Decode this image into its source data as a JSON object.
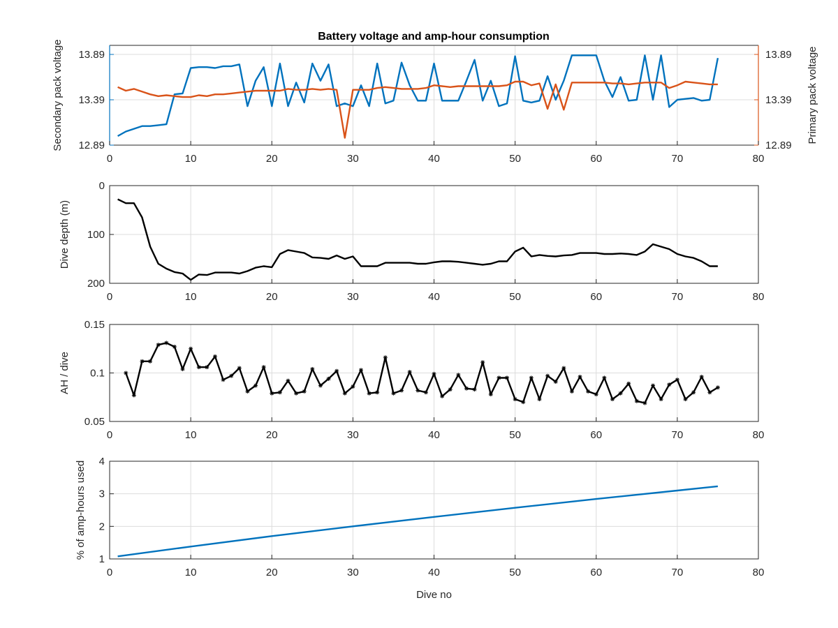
{
  "chart_data": [
    {
      "type": "line",
      "title": "Battery voltage and amp-hour consumption",
      "xlabel": "",
      "xlim": [
        0,
        80
      ],
      "xticks": [
        0,
        10,
        20,
        30,
        40,
        50,
        60,
        70,
        80
      ],
      "grid": true,
      "y_left": {
        "label": "Secondary pack voltage",
        "lim": [
          12.89,
          13.99
        ],
        "ticks": [
          "12.89",
          "13.39",
          "13.89"
        ],
        "color": "#0072BD"
      },
      "y_right": {
        "label": "Primary pack voltage",
        "lim": [
          12.89,
          13.99
        ],
        "ticks": [
          "12.89",
          "13.39",
          "13.89"
        ],
        "color": "#D95319"
      },
      "series": [
        {
          "axis": "left",
          "color": "#0072BD",
          "x": [
            1,
            2,
            3,
            4,
            5,
            6,
            7,
            8,
            9,
            10,
            11,
            12,
            13,
            14,
            15,
            16,
            17,
            18,
            19,
            20,
            21,
            22,
            23,
            24,
            25,
            26,
            27,
            28,
            29,
            30,
            31,
            32,
            33,
            34,
            35,
            36,
            37,
            38,
            39,
            40,
            41,
            42,
            43,
            44,
            45,
            46,
            47,
            48,
            49,
            50,
            51,
            52,
            53,
            54,
            55,
            56,
            57,
            58,
            59,
            60,
            61,
            62,
            63,
            64,
            65,
            66,
            67,
            68,
            69,
            70,
            71,
            72,
            73,
            74,
            75
          ],
          "y": [
            12.99,
            13.04,
            13.07,
            13.1,
            13.1,
            13.11,
            13.12,
            13.45,
            13.46,
            13.74,
            13.75,
            13.75,
            13.74,
            13.76,
            13.76,
            13.78,
            13.32,
            13.6,
            13.75,
            13.32,
            13.79,
            13.32,
            13.58,
            13.36,
            13.79,
            13.6,
            13.78,
            13.32,
            13.35,
            13.32,
            13.55,
            13.32,
            13.79,
            13.35,
            13.38,
            13.8,
            13.55,
            13.38,
            13.38,
            13.79,
            13.38,
            13.38,
            13.38,
            13.6,
            13.83,
            13.38,
            13.6,
            13.32,
            13.35,
            13.87,
            13.38,
            13.36,
            13.38,
            13.65,
            13.39,
            13.6,
            13.88,
            13.88,
            13.88,
            13.88,
            13.6,
            13.42,
            13.64,
            13.38,
            13.39,
            13.88,
            13.39,
            13.88,
            13.31,
            13.39,
            13.4,
            13.41,
            13.38,
            13.39,
            13.85
          ]
        },
        {
          "axis": "right",
          "color": "#D95319",
          "x": [
            1,
            2,
            3,
            4,
            5,
            6,
            7,
            8,
            9,
            10,
            11,
            12,
            13,
            14,
            15,
            16,
            17,
            18,
            19,
            20,
            21,
            22,
            23,
            24,
            25,
            26,
            27,
            28,
            29,
            30,
            31,
            32,
            33,
            34,
            35,
            36,
            37,
            38,
            39,
            40,
            41,
            42,
            43,
            44,
            45,
            46,
            47,
            48,
            49,
            50,
            51,
            52,
            53,
            54,
            55,
            56,
            57,
            58,
            59,
            60,
            61,
            62,
            63,
            64,
            65,
            66,
            67,
            68,
            69,
            70,
            71,
            72,
            73,
            74,
            75
          ],
          "y": [
            13.53,
            13.49,
            13.51,
            13.48,
            13.45,
            13.43,
            13.44,
            13.43,
            13.42,
            13.42,
            13.44,
            13.43,
            13.45,
            13.45,
            13.46,
            13.47,
            13.48,
            13.49,
            13.49,
            13.49,
            13.49,
            13.51,
            13.5,
            13.5,
            13.51,
            13.5,
            13.51,
            13.5,
            12.97,
            13.5,
            13.5,
            13.5,
            13.52,
            13.53,
            13.52,
            13.51,
            13.51,
            13.51,
            13.52,
            13.55,
            13.54,
            13.53,
            13.54,
            13.54,
            13.54,
            13.54,
            13.54,
            13.54,
            13.55,
            13.59,
            13.59,
            13.55,
            13.57,
            13.29,
            13.56,
            13.28,
            13.58,
            13.58,
            13.58,
            13.58,
            13.58,
            13.57,
            13.57,
            13.56,
            13.57,
            13.58,
            13.58,
            13.58,
            13.52,
            13.55,
            13.59,
            13.58,
            13.57,
            13.56,
            13.56
          ]
        }
      ]
    },
    {
      "type": "line",
      "title": "",
      "xlabel": "",
      "ylabel": "Dive depth (m)",
      "xlim": [
        0,
        80
      ],
      "xticks": [
        0,
        10,
        20,
        30,
        40,
        50,
        60,
        70,
        80
      ],
      "ylim": [
        0,
        200
      ],
      "yticks": [
        0,
        100,
        200
      ],
      "y_reversed": true,
      "grid": true,
      "series": [
        {
          "color": "#000000",
          "x": [
            1,
            2,
            3,
            4,
            5,
            6,
            7,
            8,
            9,
            10,
            11,
            12,
            13,
            14,
            15,
            16,
            17,
            18,
            19,
            20,
            21,
            22,
            23,
            24,
            25,
            26,
            27,
            28,
            29,
            30,
            31,
            32,
            33,
            34,
            35,
            36,
            37,
            38,
            39,
            40,
            41,
            42,
            43,
            44,
            45,
            46,
            47,
            48,
            49,
            50,
            51,
            52,
            53,
            54,
            55,
            56,
            57,
            58,
            59,
            60,
            61,
            62,
            63,
            64,
            65,
            66,
            67,
            68,
            69,
            70,
            71,
            72,
            73,
            74,
            75
          ],
          "y": [
            28,
            36,
            36,
            65,
            125,
            160,
            170,
            177,
            180,
            193,
            182,
            183,
            178,
            178,
            178,
            180,
            175,
            168,
            165,
            167,
            140,
            132,
            135,
            138,
            147,
            148,
            150,
            143,
            150,
            145,
            165,
            165,
            165,
            158,
            158,
            158,
            158,
            160,
            160,
            157,
            155,
            155,
            156,
            158,
            160,
            162,
            160,
            155,
            155,
            135,
            127,
            145,
            142,
            144,
            145,
            143,
            142,
            138,
            138,
            138,
            140,
            140,
            139,
            140,
            142,
            135,
            120,
            125,
            130,
            140,
            145,
            148,
            155,
            165,
            165
          ]
        }
      ]
    },
    {
      "type": "line",
      "title": "",
      "xlabel": "",
      "ylabel": "AH / dive",
      "xlim": [
        0,
        80
      ],
      "xticks": [
        0,
        10,
        20,
        30,
        40,
        50,
        60,
        70,
        80
      ],
      "ylim": [
        0.05,
        0.15
      ],
      "yticks": [
        "0.05",
        "0.1",
        "0.15"
      ],
      "grid": true,
      "marker": "*",
      "series": [
        {
          "color": "#000000",
          "x": [
            2,
            3,
            4,
            5,
            6,
            7,
            8,
            9,
            10,
            11,
            12,
            13,
            14,
            15,
            16,
            17,
            18,
            19,
            20,
            21,
            22,
            23,
            24,
            25,
            26,
            27,
            28,
            29,
            30,
            31,
            32,
            33,
            34,
            35,
            36,
            37,
            38,
            39,
            40,
            41,
            42,
            43,
            44,
            45,
            46,
            47,
            48,
            49,
            50,
            51,
            52,
            53,
            54,
            55,
            56,
            57,
            58,
            59,
            60,
            61,
            62,
            63,
            64,
            65,
            66,
            67,
            68,
            69,
            70,
            71,
            72,
            73,
            74,
            75
          ],
          "y": [
            0.1,
            0.077,
            0.112,
            0.112,
            0.129,
            0.131,
            0.127,
            0.104,
            0.125,
            0.106,
            0.106,
            0.117,
            0.093,
            0.097,
            0.105,
            0.081,
            0.087,
            0.106,
            0.079,
            0.08,
            0.092,
            0.079,
            0.081,
            0.104,
            0.087,
            0.094,
            0.102,
            0.079,
            0.086,
            0.103,
            0.079,
            0.08,
            0.116,
            0.079,
            0.082,
            0.101,
            0.082,
            0.08,
            0.099,
            0.076,
            0.083,
            0.098,
            0.084,
            0.083,
            0.111,
            0.078,
            0.095,
            0.095,
            0.073,
            0.07,
            0.095,
            0.073,
            0.097,
            0.091,
            0.105,
            0.081,
            0.096,
            0.081,
            0.078,
            0.095,
            0.073,
            0.079,
            0.089,
            0.071,
            0.069,
            0.087,
            0.073,
            0.088,
            0.093,
            0.073,
            0.08,
            0.096,
            0.08,
            0.085
          ]
        }
      ]
    },
    {
      "type": "line",
      "title": "",
      "xlabel": "Dive no",
      "ylabel": "% of amp-hours used",
      "xlim": [
        0,
        80
      ],
      "xticks": [
        0,
        10,
        20,
        30,
        40,
        50,
        60,
        70,
        80
      ],
      "ylim": [
        1,
        4
      ],
      "yticks": [
        1,
        2,
        3,
        4
      ],
      "grid": true,
      "series": [
        {
          "color": "#0072BD",
          "x": [
            1,
            10,
            20,
            30,
            40,
            50,
            60,
            70,
            75
          ],
          "y": [
            1.08,
            1.38,
            1.7,
            2.0,
            2.29,
            2.57,
            2.84,
            3.1,
            3.23
          ]
        }
      ]
    }
  ]
}
